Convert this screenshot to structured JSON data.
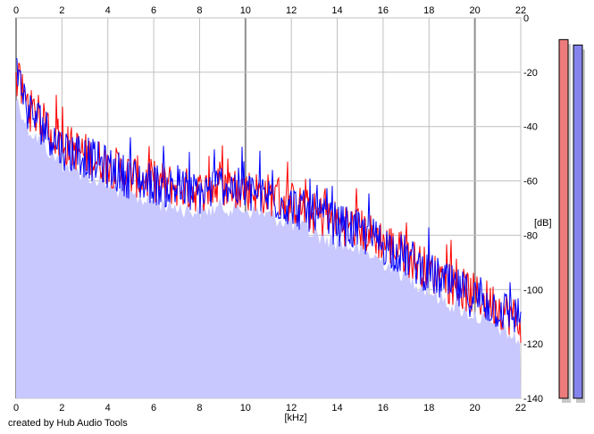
{
  "credit": "created by Hub Audio Tools",
  "colors": {
    "left_channel": "#ff0000",
    "right_channel": "#0000ff",
    "fill": "#c8c8ff",
    "grid": "#c0c0c0",
    "grid_major": "#909090",
    "meter_left": "#ec7c7c",
    "meter_right": "#8484ec"
  },
  "chart_data": {
    "type": "line",
    "xlabel": "[kHz]",
    "ylabel": "[dB]",
    "xlim": [
      0,
      22
    ],
    "ylim": [
      -140,
      0
    ],
    "x_ticks": [
      "0",
      "2",
      "4",
      "6",
      "8",
      "10",
      "12",
      "14",
      "16",
      "18",
      "20",
      "22"
    ],
    "y_ticks": [
      "0",
      "-20",
      "-40",
      "-60",
      "-80",
      "-100",
      "-120",
      "-140"
    ],
    "grid": true,
    "x_ticks_top_and_bottom": true,
    "y_ticks_side": "right",
    "series": [
      {
        "color": "#ff0000",
        "x": [
          0,
          0.25,
          0.5,
          1,
          1.5,
          2,
          3,
          4,
          5,
          6,
          7,
          8,
          9,
          10,
          11,
          12,
          13,
          14,
          15,
          16,
          17,
          18,
          19,
          20,
          21,
          22
        ],
        "y": [
          -22,
          -27,
          -33,
          -37,
          -42,
          -46,
          -50,
          -54,
          -58,
          -60,
          -62,
          -64,
          -62,
          -63,
          -65,
          -68,
          -72,
          -75,
          -78,
          -82,
          -87,
          -93,
          -98,
          -102,
          -106,
          -112
        ]
      },
      {
        "color": "#0000ff",
        "x": [
          0,
          0.25,
          0.5,
          1,
          1.5,
          2,
          3,
          4,
          5,
          6,
          7,
          8,
          9,
          10,
          11,
          12,
          13,
          14,
          15,
          16,
          17,
          18,
          19,
          20,
          21,
          22
        ],
        "y": [
          -20,
          -26,
          -34,
          -38,
          -43,
          -48,
          -51,
          -55,
          -59,
          -61,
          -63,
          -65,
          -61,
          -64,
          -66,
          -69,
          -73,
          -76,
          -79,
          -83,
          -88,
          -94,
          -99,
          -103,
          -107,
          -110
        ]
      }
    ],
    "meters": [
      {
        "channel": "left",
        "color": "#ec7c7c",
        "level_db": -8
      },
      {
        "channel": "right",
        "color": "#8484ec",
        "level_db": -10
      }
    ]
  }
}
